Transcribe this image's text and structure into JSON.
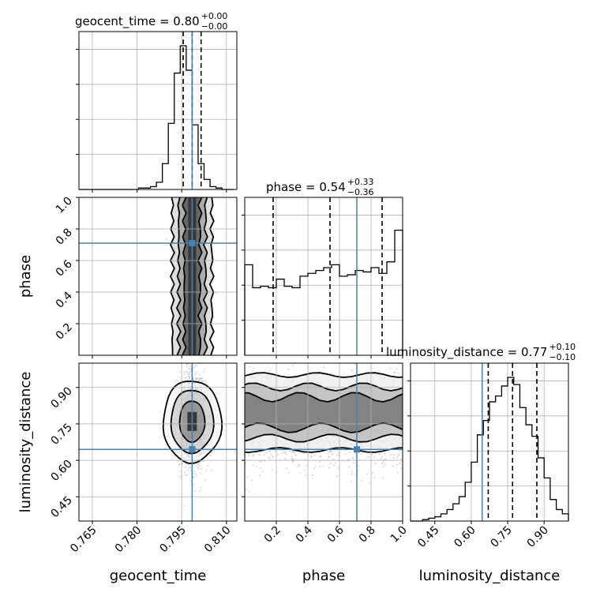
{
  "chart_data": {
    "type": "corner",
    "parameters": [
      "geocent_time",
      "phase",
      "luminosity_distance"
    ],
    "truth_color": "#4682b4",
    "truths": {
      "geocent_time": 0.7985,
      "phase": 0.71,
      "luminosity_distance": 0.645
    },
    "titles": [
      {
        "param": "geocent_time",
        "text": "geocent_time = 0.80",
        "plus": "+0.00",
        "minus": "−0.00"
      },
      {
        "param": "phase",
        "text": "phase = 0.54",
        "plus": "+0.33",
        "minus": "−0.36"
      },
      {
        "param": "luminosity_distance",
        "text": "luminosity_distance = 0.77",
        "plus": "+0.10",
        "minus": "−0.10"
      }
    ],
    "axis_labels": {
      "x": [
        "geocent_time",
        "phase",
        "luminosity_distance"
      ],
      "y": [
        "phase",
        "luminosity_distance"
      ]
    },
    "ranges": {
      "geocent_time": [
        0.7605,
        0.8135
      ],
      "phase": [
        0.0,
        1.0
      ],
      "luminosity_distance": [
        0.35,
        1.0
      ]
    },
    "ticks": {
      "geocent_time": {
        "values": [
          0.765,
          0.78,
          0.795,
          0.81
        ],
        "labels": [
          "0.765",
          "0.780",
          "0.795",
          "0.810"
        ]
      },
      "phase_x": {
        "values": [
          0.2,
          0.4,
          0.6,
          0.8,
          1.0
        ],
        "labels": [
          "0.2",
          "0.4",
          "0.6",
          "0.8",
          "1.0"
        ]
      },
      "phase_y": {
        "values": [
          0.2,
          0.4,
          0.6,
          0.8,
          1.0
        ],
        "labels": [
          "0.2",
          "0.4",
          "0.6",
          "0.8",
          "1.0"
        ]
      },
      "luminosity_distance": {
        "values": [
          0.45,
          0.6,
          0.75,
          0.9
        ],
        "labels": [
          "0.45",
          "0.60",
          "0.75",
          "0.90"
        ]
      }
    },
    "marginals": {
      "geocent_time": {
        "bin_edges": [
          0.7605,
          0.7625,
          0.7645,
          0.7665,
          0.7685,
          0.7705,
          0.7725,
          0.7745,
          0.7765,
          0.7785,
          0.7805,
          0.7825,
          0.7845,
          0.7865,
          0.7885,
          0.7905,
          0.7925,
          0.7945,
          0.7965,
          0.7985,
          0.8005,
          0.8025,
          0.8045,
          0.8065,
          0.8085,
          0.8105,
          0.8125
        ],
        "counts": [
          0,
          0,
          0,
          0,
          0,
          0,
          0,
          0,
          0,
          0,
          0.01,
          0.01,
          0.02,
          0.05,
          0.18,
          0.46,
          0.81,
          1.0,
          0.83,
          0.45,
          0.18,
          0.07,
          0.02,
          0.01,
          0,
          0
        ],
        "quantiles": [
          0.7955,
          0.7985,
          0.8015
        ]
      },
      "phase": {
        "bin_edges": [
          0.0,
          0.05,
          0.1,
          0.15,
          0.2,
          0.25,
          0.3,
          0.35,
          0.4,
          0.45,
          0.5,
          0.55,
          0.6,
          0.65,
          0.7,
          0.75,
          0.8,
          0.85,
          0.9,
          0.95,
          1.0
        ],
        "counts": [
          0.63,
          0.47,
          0.48,
          0.47,
          0.53,
          0.48,
          0.47,
          0.55,
          0.57,
          0.59,
          0.61,
          0.63,
          0.55,
          0.56,
          0.59,
          0.58,
          0.61,
          0.57,
          0.65,
          0.87
        ],
        "quantiles": [
          0.18,
          0.54,
          0.87
        ]
      },
      "luminosity_distance": {
        "bin_edges": [
          0.35,
          0.375,
          0.4,
          0.425,
          0.45,
          0.475,
          0.5,
          0.525,
          0.55,
          0.575,
          0.6,
          0.625,
          0.65,
          0.675,
          0.7,
          0.725,
          0.75,
          0.775,
          0.8,
          0.825,
          0.85,
          0.875,
          0.9,
          0.925,
          0.95,
          0.975,
          1.0
        ],
        "counts": [
          0,
          0,
          0.01,
          0.02,
          0.03,
          0.05,
          0.08,
          0.12,
          0.17,
          0.27,
          0.41,
          0.6,
          0.7,
          0.83,
          0.87,
          0.94,
          1.0,
          0.95,
          0.79,
          0.67,
          0.59,
          0.44,
          0.3,
          0.15,
          0.08,
          0.05
        ],
        "quantiles": [
          0.67,
          0.77,
          0.87
        ]
      }
    }
  }
}
